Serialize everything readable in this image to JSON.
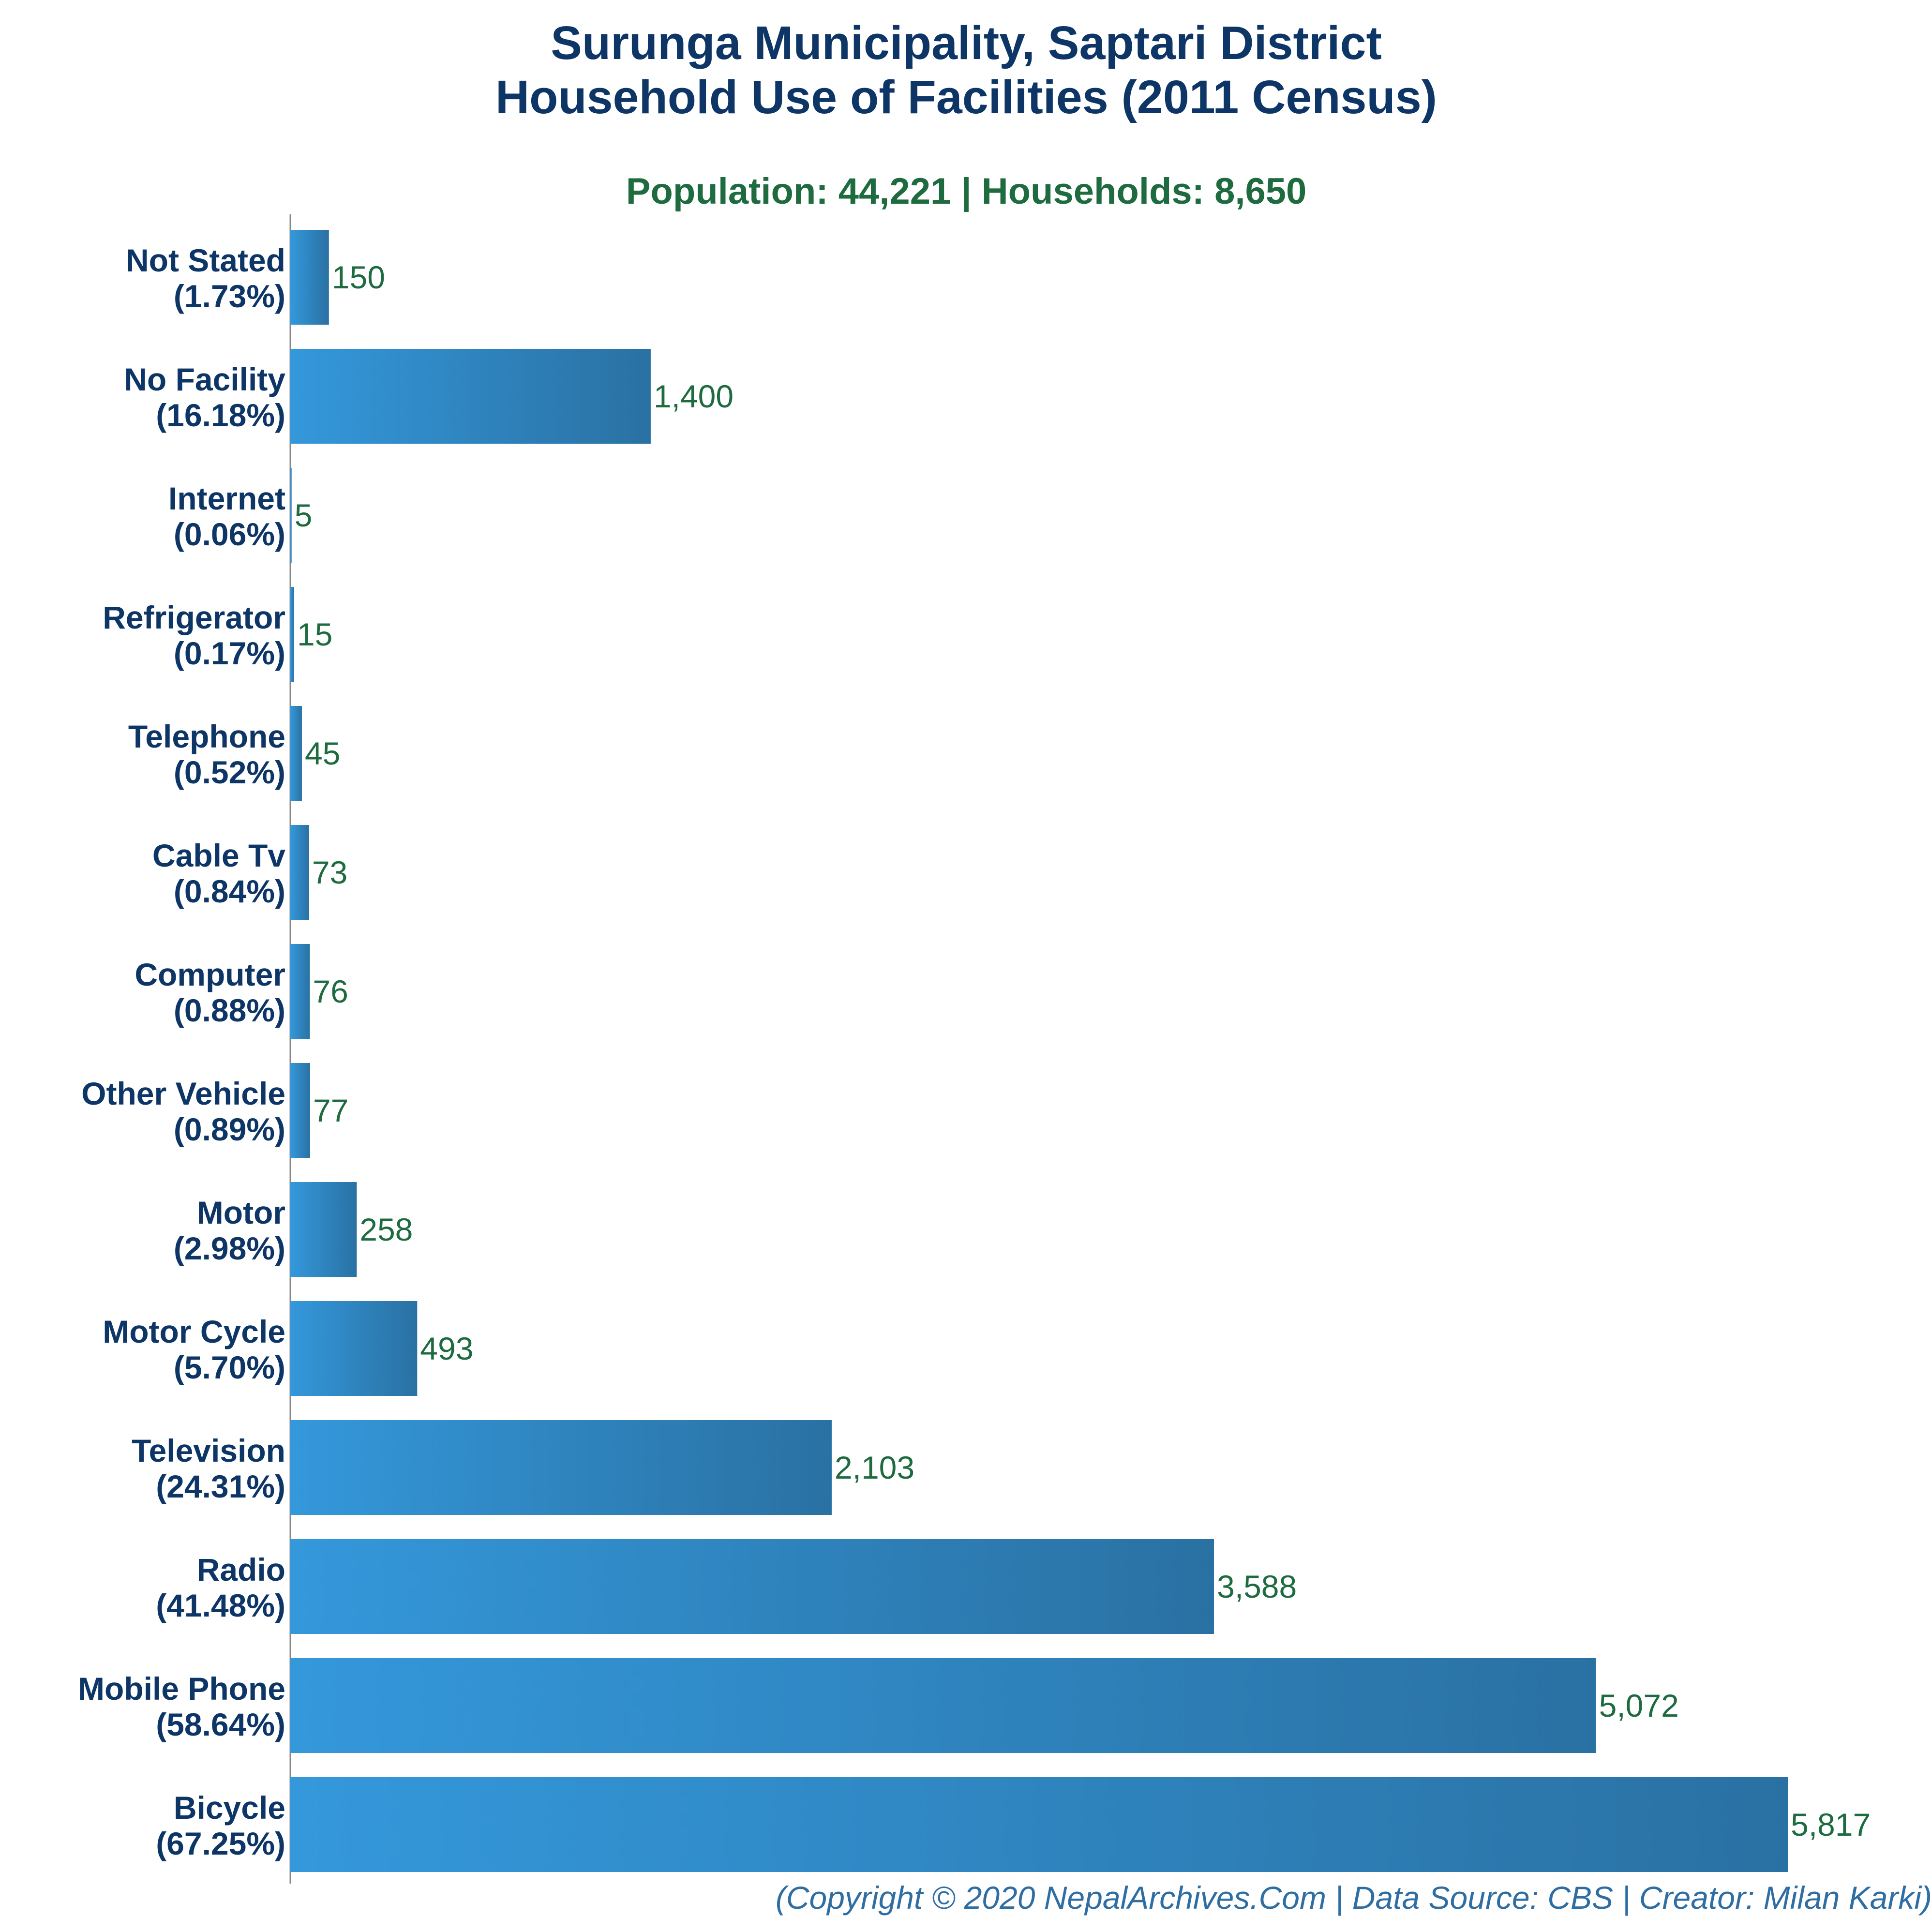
{
  "title_line1": "Surunga Municipality, Saptari District",
  "title_line2": "Household Use of Facilities (2011 Census)",
  "subtitle": "Population: 44,221 | Households: 8,650",
  "footer": "(Copyright © 2020 NepalArchives.Com | Data Source: CBS | Creator: Milan Karki)",
  "colors": {
    "title": "#0d3566",
    "subtitle": "#1d6b3f",
    "bar_light": "#3498db",
    "bar_dark": "#2a71a3",
    "value_label": "#1d6b3f",
    "footer": "#2f6ea3",
    "axis": "#888888"
  },
  "chart_data": {
    "type": "bar",
    "orientation": "horizontal",
    "title": "Surunga Municipality, Saptari District Household Use of Facilities (2011 Census)",
    "subtitle": "Population: 44,221 | Households: 8,650",
    "categories": [
      "Not Stated",
      "No Facility",
      "Internet",
      "Refrigerator",
      "Telephone",
      "Cable Tv",
      "Computer",
      "Other Vehicle",
      "Motor",
      "Motor Cycle",
      "Television",
      "Radio",
      "Mobile Phone",
      "Bicycle"
    ],
    "percent_labels": [
      "(1.73%)",
      "(16.18%)",
      "(0.06%)",
      "(0.17%)",
      "(0.52%)",
      "(0.84%)",
      "(0.88%)",
      "(0.89%)",
      "(2.98%)",
      "(5.70%)",
      "(24.31%)",
      "(41.48%)",
      "(58.64%)",
      "(67.25%)"
    ],
    "values": [
      150,
      1400,
      5,
      15,
      45,
      73,
      76,
      77,
      258,
      493,
      2103,
      3588,
      5072,
      5817
    ],
    "value_labels": [
      "150",
      "1,400",
      "5",
      "15",
      "45",
      "73",
      "76",
      "77",
      "258",
      "493",
      "2,103",
      "3,588",
      "5,072",
      "5,817"
    ],
    "xlim": [
      0,
      5817
    ],
    "grid": false,
    "legend": "none"
  }
}
